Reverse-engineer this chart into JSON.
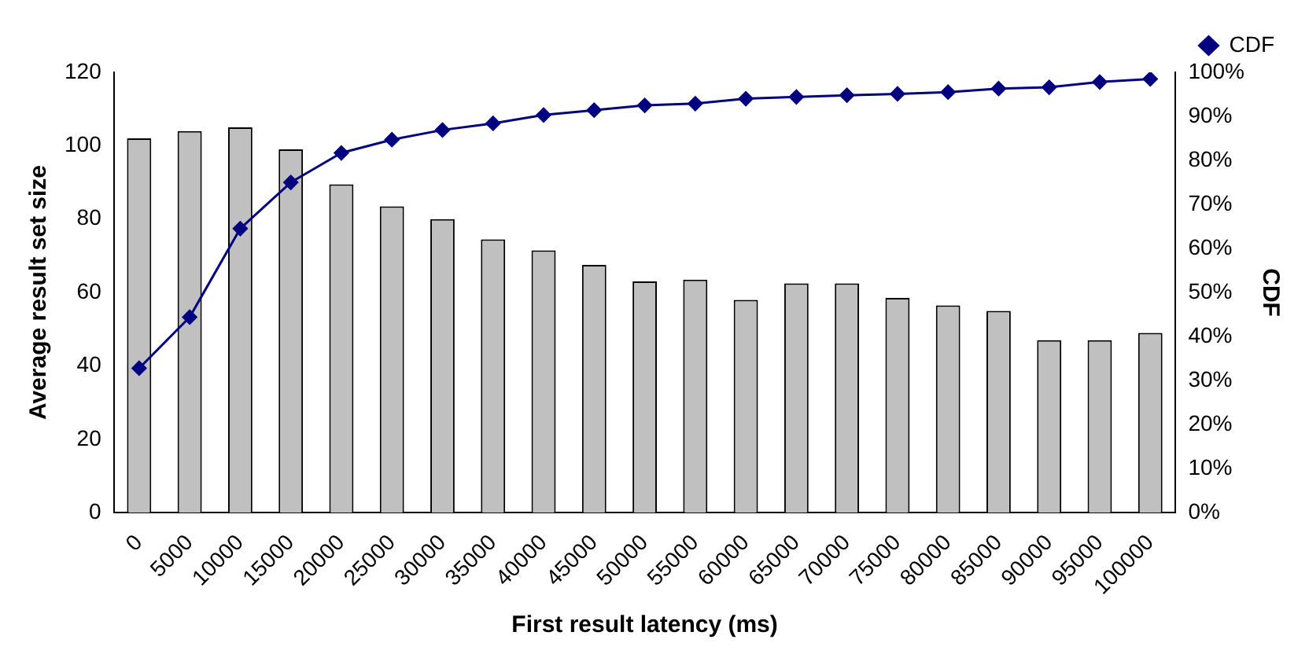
{
  "chart_data": {
    "type": "bar",
    "xlabel": "First result latency (ms)",
    "ylabel": "Average result set size",
    "y2label": "CDF",
    "categories": [
      "0",
      "5000",
      "10000",
      "15000",
      "20000",
      "25000",
      "30000",
      "35000",
      "40000",
      "45000",
      "50000",
      "55000",
      "60000",
      "65000",
      "70000",
      "75000",
      "80000",
      "85000",
      "90000",
      "95000",
      "100000"
    ],
    "series": [
      {
        "color": "#c0c0c0",
        "values": [
          102,
          104,
          105,
          99,
          89.5,
          83.5,
          80,
          74.5,
          71.5,
          67.5,
          63,
          63.5,
          58,
          62.5,
          62.5,
          58.5,
          56.5,
          55,
          47,
          47,
          49
        ]
      },
      {
        "type": "line",
        "name": "CDF",
        "axis": "y2",
        "color": "#000080",
        "values": [
          32.8,
          44.4,
          64.5,
          75,
          81.7,
          84.7,
          86.9,
          88.4,
          90.3,
          91.4,
          92.5,
          92.9,
          94,
          94.4,
          94.8,
          95.1,
          95.5,
          96.3,
          96.6,
          97.8,
          98.5
        ]
      }
    ],
    "ylim": [
      0,
      120
    ],
    "yticks": [
      0,
      20,
      40,
      60,
      80,
      100,
      120
    ],
    "y2lim": [
      0,
      100
    ],
    "y2ticks": [
      {
        "value": 0,
        "label": "0%"
      },
      {
        "value": 10,
        "label": "10%"
      },
      {
        "value": 20,
        "label": "20%"
      },
      {
        "value": 30,
        "label": "30%"
      },
      {
        "value": 40,
        "label": "40%"
      },
      {
        "value": 50,
        "label": "50%"
      },
      {
        "value": 60,
        "label": "60%"
      },
      {
        "value": 70,
        "label": "70%"
      },
      {
        "value": 80,
        "label": "80%"
      },
      {
        "value": 90,
        "label": "90%"
      },
      {
        "value": 100,
        "label": "100%"
      }
    ],
    "grid": false,
    "legend": "top right",
    "marker": "diamond"
  }
}
